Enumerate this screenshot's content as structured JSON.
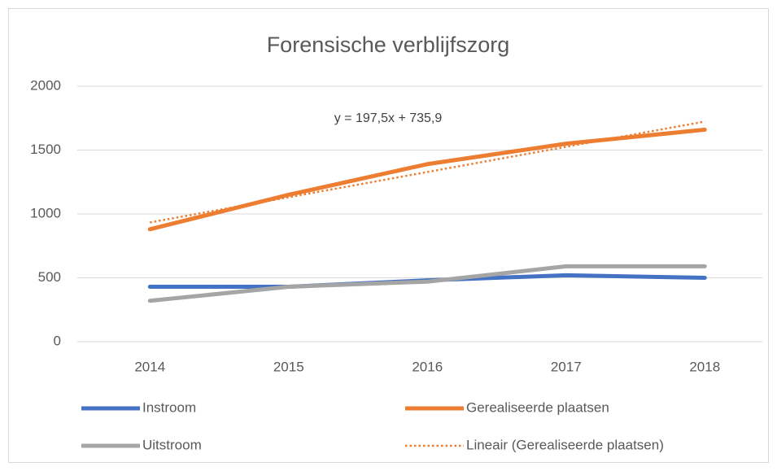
{
  "chart_data": {
    "type": "line",
    "title": "Forensische verblijfszorg",
    "annotation": "y = 197,5x + 735,9",
    "categories": [
      "2014",
      "2015",
      "2016",
      "2017",
      "2018"
    ],
    "series": [
      {
        "name": "Instroom",
        "color": "#4472c4",
        "values": [
          430,
          430,
          480,
          520,
          500
        ]
      },
      {
        "name": "Gerealiseerde plaatsen",
        "color": "#ed7d31",
        "values": [
          880,
          1150,
          1390,
          1550,
          1660
        ]
      },
      {
        "name": "Uitstroom",
        "color": "#a5a5a5",
        "values": [
          320,
          430,
          470,
          590,
          590
        ]
      },
      {
        "name": "Lineair (Gerealiseerde plaatsen)",
        "color": "#ed7d31",
        "line_style": "dotted",
        "values": [
          933.4,
          1130.9,
          1328.4,
          1525.9,
          1723.4
        ]
      }
    ],
    "ylim": [
      0,
      2000
    ],
    "yticks": [
      0,
      500,
      1000,
      1500,
      2000
    ],
    "grid": true,
    "legend": "bottom"
  }
}
